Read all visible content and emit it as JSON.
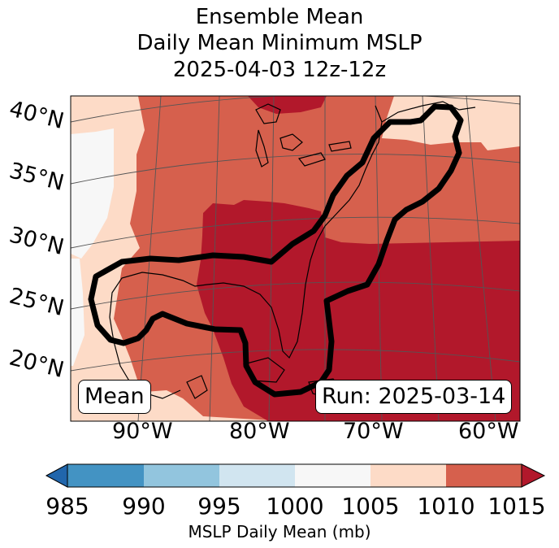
{
  "title": {
    "line1": "Ensemble Mean",
    "line2": "Daily Mean Minimum MSLP",
    "line3": "2025-04-03 12z-12z"
  },
  "map": {
    "latitude_labels": [
      "40°N",
      "35°N",
      "30°N",
      "25°N",
      "20°N"
    ],
    "longitude_labels": [
      "90°W",
      "80°W",
      "70°W",
      "60°W"
    ],
    "mean_label": "Mean",
    "run_label": "Run: 2025-03-14"
  },
  "colorbar": {
    "ticks": [
      "985",
      "990",
      "995",
      "1000",
      "1005",
      "1010",
      "1015"
    ],
    "label": "MSLP Daily Mean (mb)",
    "colors": {
      "under": "#2166ac",
      "c985_990": "#4393c3",
      "c990_995": "#92c5de",
      "c995_1000": "#d1e5f0",
      "c1000_1005": "#f7f7f7",
      "c1005_1010": "#fddbc7",
      "c1010_1015": "#d6604d",
      "over": "#b2182b"
    }
  }
}
